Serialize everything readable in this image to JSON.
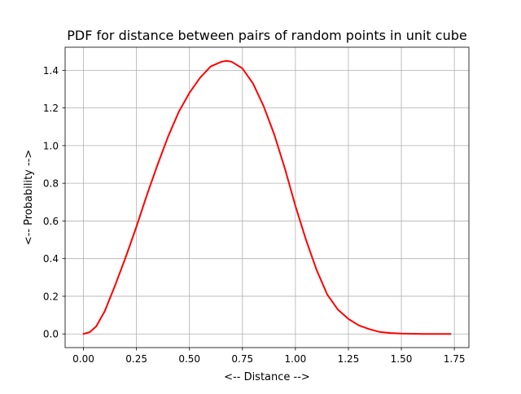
{
  "chart_data": {
    "type": "line",
    "title": "PDF for distance between pairs of random points in unit cube",
    "xlabel": "<-- Distance -->",
    "ylabel": "<-- Probability -->",
    "xlim": [
      -0.0866,
      1.8187
    ],
    "ylim": [
      -0.0725,
      1.5225
    ],
    "grid": true,
    "xticks": [
      0.0,
      0.25,
      0.5,
      0.75,
      1.0,
      1.25,
      1.5,
      1.75
    ],
    "xtick_labels": [
      "0.00",
      "0.25",
      "0.50",
      "0.75",
      "1.00",
      "1.25",
      "1.50",
      "1.75"
    ],
    "yticks": [
      0.0,
      0.2,
      0.4,
      0.6,
      0.8,
      1.0,
      1.2,
      1.4
    ],
    "ytick_labels": [
      "0.0",
      "0.2",
      "0.4",
      "0.6",
      "0.8",
      "1.0",
      "1.2",
      "1.4"
    ],
    "series": [
      {
        "name": "PDF",
        "color": "#ff0000",
        "x": [
          0.0,
          0.03,
          0.06,
          0.1,
          0.15,
          0.2,
          0.25,
          0.3,
          0.35,
          0.4,
          0.45,
          0.5,
          0.55,
          0.6,
          0.65,
          0.675,
          0.7,
          0.75,
          0.8,
          0.85,
          0.9,
          0.95,
          1.0,
          1.05,
          1.1,
          1.15,
          1.2,
          1.25,
          1.3,
          1.35,
          1.4,
          1.45,
          1.5,
          1.55,
          1.6,
          1.65,
          1.7,
          1.732
        ],
        "y": [
          0.0,
          0.01,
          0.04,
          0.12,
          0.26,
          0.41,
          0.57,
          0.74,
          0.9,
          1.05,
          1.18,
          1.28,
          1.36,
          1.42,
          1.445,
          1.45,
          1.445,
          1.41,
          1.33,
          1.21,
          1.06,
          0.88,
          0.68,
          0.5,
          0.34,
          0.21,
          0.13,
          0.08,
          0.045,
          0.025,
          0.01,
          0.005,
          0.002,
          0.001,
          0.0,
          0.0,
          0.0,
          0.0
        ]
      }
    ]
  }
}
